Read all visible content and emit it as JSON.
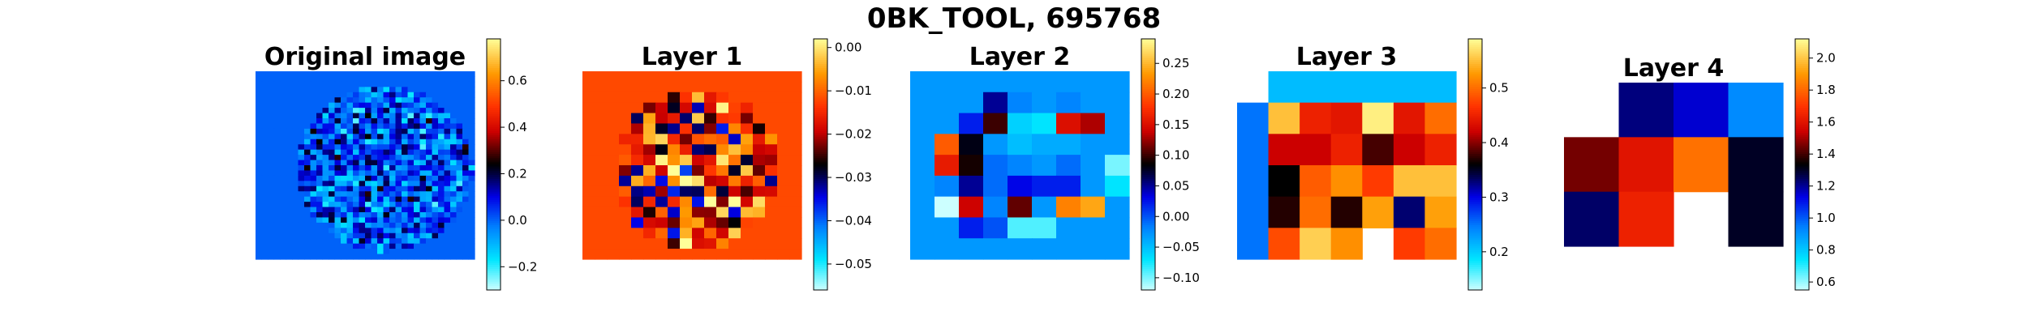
{
  "figure_title": "0BK_TOOL, 695768",
  "colormap": {
    "name": "icefire-like",
    "stops": [
      [
        0.0,
        "#ccffff"
      ],
      [
        0.12,
        "#00e6ff"
      ],
      [
        0.25,
        "#0080ff"
      ],
      [
        0.37,
        "#0000e6"
      ],
      [
        0.46,
        "#000040"
      ],
      [
        0.5,
        "#000000"
      ],
      [
        0.54,
        "#400000"
      ],
      [
        0.63,
        "#cc0000"
      ],
      [
        0.73,
        "#ff3300"
      ],
      [
        0.86,
        "#ff9900"
      ],
      [
        1.0,
        "#ffff99"
      ]
    ]
  },
  "chart_data": [
    {
      "type": "heatmap",
      "title": "Original image",
      "grid": {
        "rows": 36,
        "cols": 36
      },
      "value_range": [
        -0.3,
        0.78
      ],
      "background_value": 0.0,
      "colorbar_ticks": [
        "0.6",
        "0.4",
        "0.2",
        "0.0",
        "−0.2"
      ],
      "colorbar_tick_values": [
        0.6,
        0.4,
        0.2,
        0.0,
        -0.2
      ],
      "mask": "ellipse",
      "mask_params": {
        "cx": 0.59,
        "cy": 0.52,
        "rx": 0.4,
        "ry": 0.44
      },
      "pattern_seed": 11,
      "pattern_center": 0.02,
      "pattern_spread": 0.26
    },
    {
      "type": "heatmap",
      "title": "Layer 1",
      "grid": {
        "rows": 18,
        "cols": 18
      },
      "value_range": [
        -0.056,
        0.002
      ],
      "background_value": -0.012,
      "colorbar_ticks": [
        "0.00",
        "−0.01",
        "−0.02",
        "−0.03",
        "−0.04",
        "−0.05"
      ],
      "colorbar_tick_values": [
        0.0,
        -0.01,
        -0.02,
        -0.03,
        -0.04,
        -0.05
      ],
      "mask": "ellipse",
      "mask_params": {
        "cx": 0.52,
        "cy": 0.52,
        "rx": 0.37,
        "ry": 0.42
      },
      "pattern_seed": 23,
      "pattern_center": -0.016,
      "pattern_spread": 0.024
    },
    {
      "type": "heatmap",
      "title": "Layer 2",
      "grid": {
        "rows": 9,
        "cols": 9
      },
      "value_range": [
        -0.12,
        0.29
      ],
      "values": [
        [
          -0.03,
          -0.03,
          -0.03,
          -0.03,
          -0.03,
          -0.03,
          -0.03,
          -0.03,
          -0.03
        ],
        [
          -0.03,
          -0.03,
          -0.03,
          0.05,
          -0.02,
          -0.03,
          -0.02,
          -0.03,
          -0.03
        ],
        [
          -0.03,
          -0.03,
          0.02,
          0.1,
          -0.06,
          -0.07,
          0.15,
          0.13,
          -0.03
        ],
        [
          -0.03,
          0.2,
          0.08,
          -0.03,
          -0.05,
          -0.04,
          -0.04,
          -0.03,
          -0.03
        ],
        [
          -0.03,
          0.16,
          0.09,
          -0.01,
          -0.02,
          -0.03,
          -0.01,
          -0.03,
          -0.1
        ],
        [
          -0.03,
          -0.02,
          0.05,
          -0.01,
          0.03,
          0.02,
          0.02,
          -0.03,
          -0.07
        ],
        [
          -0.03,
          -0.12,
          0.14,
          -0.02,
          0.11,
          -0.03,
          0.22,
          0.24,
          -0.03
        ],
        [
          -0.03,
          -0.03,
          0.02,
          0.0,
          -0.09,
          -0.09,
          -0.03,
          -0.03,
          -0.03
        ],
        [
          -0.03,
          -0.03,
          -0.03,
          -0.03,
          -0.03,
          -0.03,
          -0.03,
          -0.03,
          -0.03
        ]
      ],
      "colorbar_ticks": [
        "0.25",
        "0.20",
        "0.15",
        "0.10",
        "0.05",
        "0.00",
        "−0.05",
        "−0.10"
      ],
      "colorbar_tick_values": [
        0.25,
        0.2,
        0.15,
        0.1,
        0.05,
        0.0,
        -0.05,
        -0.1
      ]
    },
    {
      "type": "heatmap",
      "title": "Layer 3",
      "grid": {
        "rows": 6,
        "cols": 7
      },
      "value_range": [
        0.13,
        0.59
      ],
      "values": [
        [
          null,
          0.21,
          0.21,
          0.21,
          0.21,
          0.21,
          0.21
        ],
        [
          0.25,
          0.55,
          0.45,
          0.44,
          0.58,
          0.44,
          0.5
        ],
        [
          0.25,
          0.42,
          0.42,
          0.45,
          0.38,
          0.42,
          0.45
        ],
        [
          0.25,
          0.36,
          0.49,
          0.52,
          0.47,
          0.55,
          0.55
        ],
        [
          0.25,
          0.37,
          0.5,
          0.37,
          0.53,
          0.33,
          0.53
        ],
        [
          0.25,
          0.48,
          0.56,
          0.52,
          null,
          0.47,
          0.5
        ]
      ],
      "colorbar_ticks": [
        "0.5",
        "0.4",
        "0.3",
        "0.2"
      ],
      "colorbar_tick_values": [
        0.5,
        0.4,
        0.3,
        0.2
      ]
    },
    {
      "type": "heatmap",
      "title": "Layer 4",
      "grid": {
        "rows": 3,
        "cols": 4
      },
      "value_range": [
        0.55,
        2.12
      ],
      "values": [
        [
          null,
          1.22,
          1.15,
          0.92
        ],
        [
          1.45,
          1.6,
          1.82,
          1.3
        ],
        [
          1.24,
          1.64,
          null,
          1.3
        ]
      ],
      "colorbar_ticks": [
        "2.0",
        "1.8",
        "1.6",
        "1.4",
        "1.2",
        "1.0",
        "0.8",
        "0.6"
      ],
      "colorbar_tick_values": [
        2.0,
        1.8,
        1.6,
        1.4,
        1.2,
        1.0,
        0.8,
        0.6
      ]
    }
  ]
}
